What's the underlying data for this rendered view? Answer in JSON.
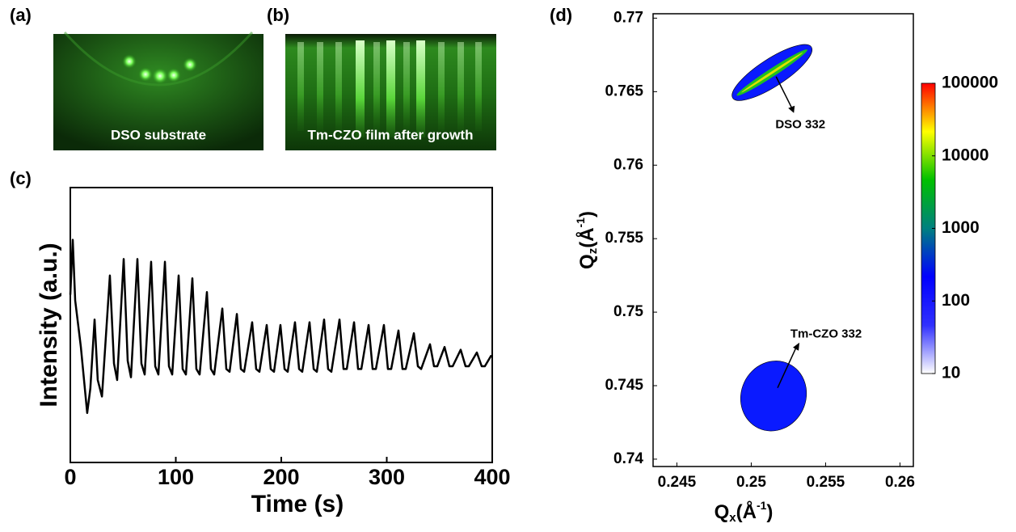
{
  "images": [
    {
      "label": "(a)",
      "caption": "DSO substrate"
    },
    {
      "label": "(b)",
      "caption": "Tm-CZO film after growth"
    }
  ],
  "chart_data": [
    {
      "type": "line",
      "panel_label": "(c)",
      "xlabel": "Time (s)",
      "ylabel": "Intensity (a.u.)",
      "xlim": [
        0,
        400
      ],
      "xticks": [
        0,
        100,
        200,
        300,
        400
      ],
      "ylim": [
        0,
        1
      ],
      "x": [
        0,
        2.3,
        4.6,
        10,
        16,
        19,
        23,
        26,
        30,
        37.5,
        41.4,
        44.4,
        50.6,
        54.4,
        57.5,
        63.6,
        67.4,
        70.5,
        76.6,
        80.5,
        83.5,
        89.7,
        93.5,
        96.6,
        102.7,
        106.5,
        109.6,
        115.7,
        119.5,
        122.6,
        129.5,
        133.3,
        136.4,
        144.1,
        147.9,
        151,
        157.9,
        161.7,
        164.8,
        172.4,
        176.2,
        179.3,
        186.2,
        190,
        193.1,
        199.2,
        203.1,
        206.1,
        213,
        216.9,
        219.9,
        226.8,
        230.7,
        233.7,
        240.6,
        244.4,
        247.5,
        255.2,
        259,
        262.1,
        269,
        272.8,
        275.9,
        282.8,
        286.6,
        289.7,
        297.3,
        301.1,
        304.2,
        311.1,
        314.9,
        318,
        325.7,
        329.5,
        332.6,
        341,
        344.8,
        347.9,
        354.8,
        359.4,
        362.5,
        370.1,
        374.7,
        377.8,
        385.4,
        390,
        393,
        399.2
      ],
      "series": [
        {
          "color": "#000000",
          "values": [
            0.61,
            0.81,
            0.59,
            0.42,
            0.18,
            0.27,
            0.52,
            0.3,
            0.24,
            0.68,
            0.36,
            0.3,
            0.74,
            0.37,
            0.31,
            0.74,
            0.36,
            0.32,
            0.73,
            0.35,
            0.32,
            0.73,
            0.35,
            0.32,
            0.68,
            0.34,
            0.32,
            0.67,
            0.34,
            0.32,
            0.62,
            0.34,
            0.32,
            0.56,
            0.34,
            0.33,
            0.54,
            0.34,
            0.33,
            0.51,
            0.34,
            0.33,
            0.5,
            0.34,
            0.33,
            0.5,
            0.34,
            0.33,
            0.51,
            0.34,
            0.33,
            0.51,
            0.34,
            0.33,
            0.52,
            0.34,
            0.33,
            0.52,
            0.34,
            0.34,
            0.51,
            0.34,
            0.34,
            0.5,
            0.34,
            0.34,
            0.5,
            0.34,
            0.34,
            0.48,
            0.34,
            0.34,
            0.47,
            0.35,
            0.34,
            0.43,
            0.35,
            0.35,
            0.42,
            0.35,
            0.35,
            0.41,
            0.35,
            0.35,
            0.4,
            0.35,
            0.35,
            0.39
          ]
        }
      ]
    },
    {
      "type": "map",
      "panel_label": "(d)",
      "xlabel": {
        "main": "Q",
        "sub": "x",
        "unit": "(Å",
        "sup": "-1",
        "close": ")"
      },
      "ylabel": {
        "main": "Q",
        "sub": "z",
        "unit": "(Å",
        "sup": "-1",
        "close": ")"
      },
      "xlim": [
        0.2434,
        0.2609
      ],
      "xticks": [
        0.245,
        0.25,
        0.255,
        0.26
      ],
      "ylim": [
        0.7395,
        0.7703
      ],
      "yticks": [
        0.74,
        0.745,
        0.75,
        0.755,
        0.76,
        0.765,
        0.77
      ],
      "peaks": [
        {
          "label": "DSO 332",
          "qx": 0.2514,
          "qz": 0.7663
        },
        {
          "label": "Tm-CZO 332",
          "qx": 0.2515,
          "qz": 0.7443
        }
      ],
      "colorbar": {
        "scale": "log",
        "lim": [
          10,
          100000
        ],
        "ticks": [
          10,
          100,
          1000,
          10000,
          100000
        ],
        "colors": [
          "#ffffff",
          "#3030ff",
          "#0000ff",
          "#008080",
          "#00c000",
          "#ffff00",
          "#ff0000"
        ]
      }
    }
  ]
}
